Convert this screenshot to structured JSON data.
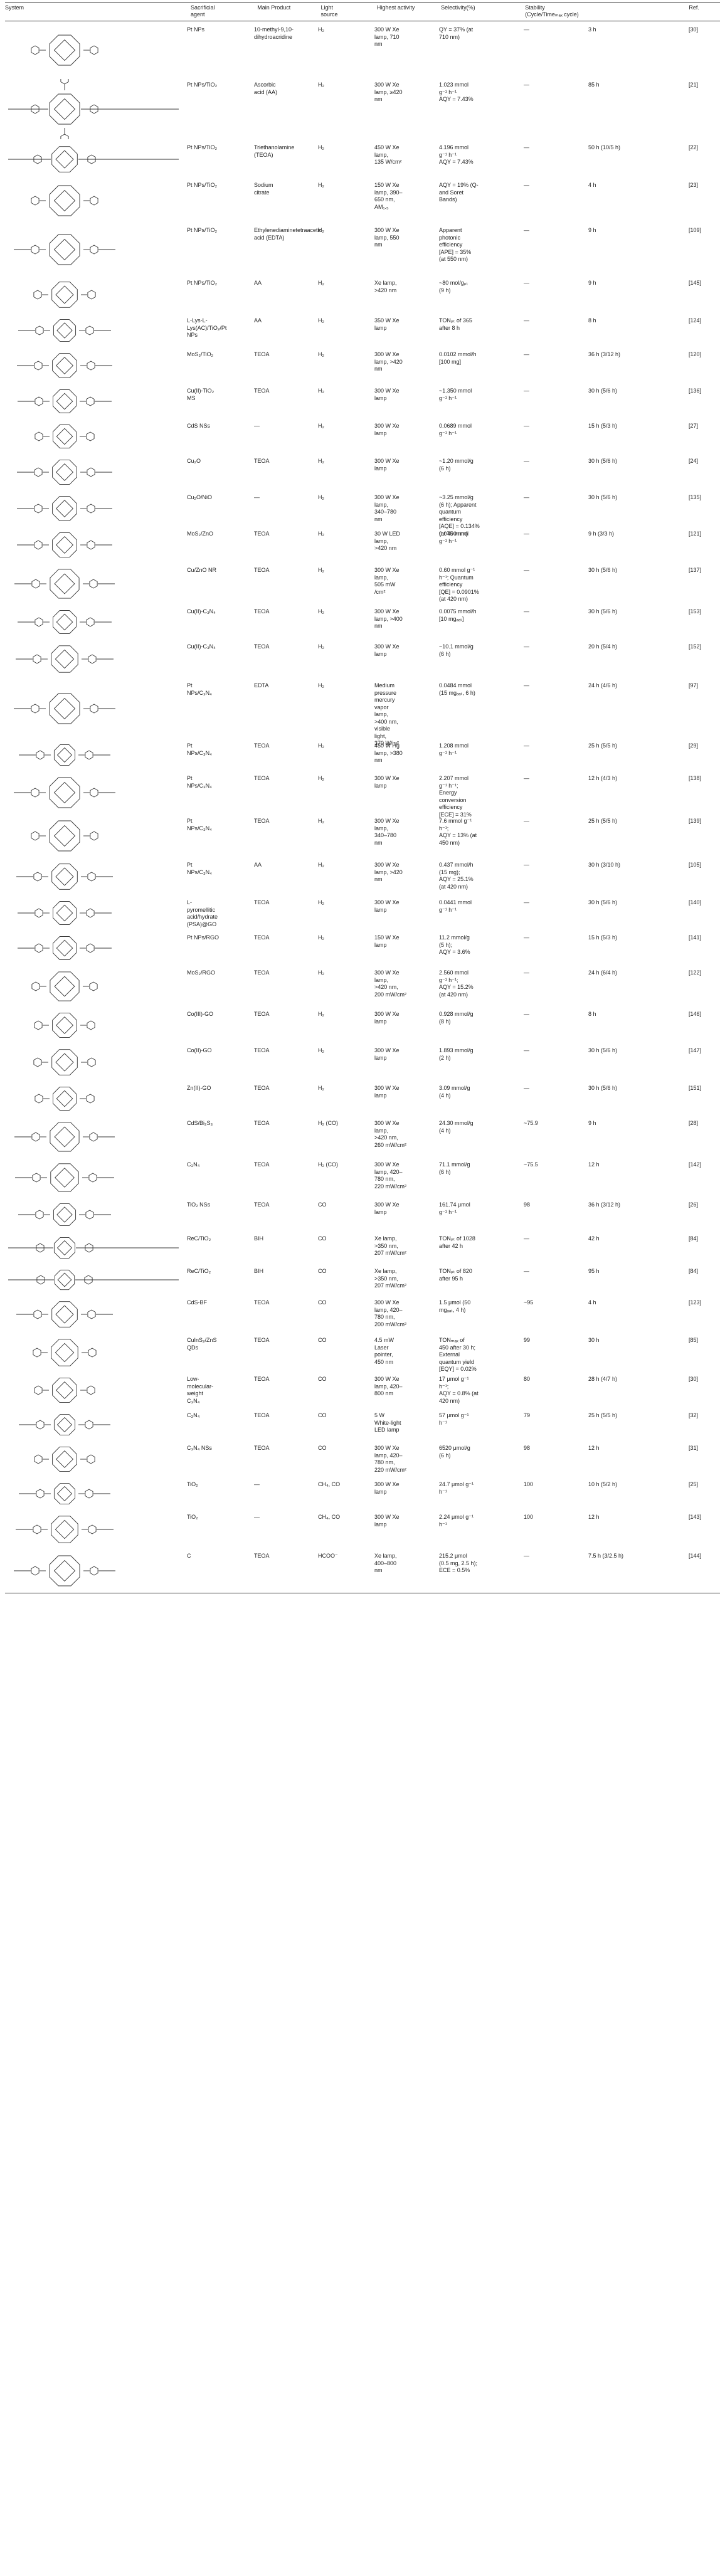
{
  "header": {
    "system": "System",
    "sacrificial": "Sacrificial\nagent",
    "product": "Main Product",
    "light": "Light\nsource",
    "activity": "Highest activity",
    "selectivity": "Selectivity(%)",
    "stability": "Stability\n(Cycle/Timeₘₐₓ cycle)",
    "ref": "Ref."
  },
  "rows": [
    {
      "h": 88,
      "mol": "porphyrin-pyridyl",
      "system": "Pt NPs",
      "agent": "10-methyl-9,10-dihydroacridine",
      "product": "H₂",
      "light": "300 W Xe\nlamp, 710\nnm",
      "activity": "QY = 37% (at\n710 nm)",
      "selectivity": "—",
      "stability": "3 h",
      "ref": "[30]"
    },
    {
      "h": 100,
      "mol": "porphyrin-dimer",
      "system": "Pt NPs/TiO₂",
      "agent": "Ascorbic\nacid (AA)",
      "product": "H₂",
      "light": "300 W Xe\nlamp, ≥420\nnm",
      "activity": "1.023 mmol\ng⁻¹ h⁻¹\nAQY = 7.43%",
      "selectivity": "—",
      "stability": "85 h",
      "ref": "[21]"
    },
    {
      "h": 60,
      "mol": "porphyrin-alkyne",
      "system": "Pt NPs/TiO₂",
      "agent": "Triethanolamine\n(TEOA)",
      "product": "H₂",
      "light": "450 W Xe\nlamp,\n135 W/cm²",
      "activity": "4.196 mmol\ng⁻¹ h⁻¹\nAQY = 7.43%",
      "selectivity": "—",
      "stability": "50 h (10/5 h)",
      "ref": "[22]"
    },
    {
      "h": 72,
      "mol": "porphyrin-ester",
      "system": "Pt NPs/TiO₂",
      "agent": "Sodium\ncitrate",
      "product": "H₂",
      "light": "150 W Xe\nlamp, 390–\n650 nm,\nAM₁.₅",
      "activity": "AQY = 19% (Q-\nand Soret\nBands)",
      "selectivity": "—",
      "stability": "4 h",
      "ref": "[23]"
    },
    {
      "h": 84,
      "mol": "porphyrin-amine",
      "system": "Pt NPs/TiO₂",
      "agent": "Ethylenediaminetetraacetic\nacid (EDTA)",
      "product": "H₂",
      "light": "300 W Xe\nlamp, 550\nnm",
      "activity": "Apparent\nphotonic\nefficiency\n[APE] = 35%\n(at 550 nm)",
      "selectivity": "—",
      "stability": "9 h",
      "ref": "[109]"
    },
    {
      "h": 60,
      "mol": "porphyrin-triazole",
      "system": "Pt NPs/TiO₂",
      "agent": "AA",
      "product": "H₂",
      "light": "Xe lamp,\n>420 nm",
      "activity": "~80 mol/gₚₜ\n(9 h)",
      "selectivity": "—",
      "stability": "9 h",
      "ref": "[145]"
    },
    {
      "h": 54,
      "mol": "porphyrin-sulfonate",
      "system": "L-Lys-L-\nLys(AC)/TiO₂/Pt\nNPs",
      "agent": "AA",
      "product": "H₂",
      "light": "350 W Xe\nlamp",
      "activity": "TONₚₜ of 365\nafter 8 h",
      "selectivity": "—",
      "stability": "8 h",
      "ref": "[124]"
    },
    {
      "h": 58,
      "mol": "porphyrin-carboxy",
      "system": "MoS₂/TiO₂",
      "agent": "TEOA",
      "product": "H₂",
      "light": "300 W Xe\nlamp, >420\nnm",
      "activity": "0.0102 mmol/h\n[100 mg]",
      "selectivity": "—",
      "stability": "36 h (3/12 h)",
      "ref": "[120]"
    },
    {
      "h": 56,
      "mol": "porphyrin-carboxy",
      "system": "Cu(II)-TiO₂\nMS",
      "agent": "TEOA",
      "product": "H₂",
      "light": "300 W Xe\nlamp",
      "activity": "~1.350 mmol\ng⁻¹ h⁻¹",
      "selectivity": "—",
      "stability": "30 h (5/6 h)",
      "ref": "[136]"
    },
    {
      "h": 56,
      "mol": "porphyrin-amide",
      "system": "CdS NSs",
      "agent": "—",
      "product": "H₂",
      "light": "300 W Xe\nlamp",
      "activity": "0.0689 mmol\ng⁻¹ h⁻¹",
      "selectivity": "—",
      "stability": "15 h (5/3 h)",
      "ref": "[27]"
    },
    {
      "h": 58,
      "mol": "porphyrin-carboxy",
      "system": "Cu₂O",
      "agent": "TEOA",
      "product": "H₂",
      "light": "300 W Xe\nlamp",
      "activity": "~1.20 mmol/g\n(6 h)",
      "selectivity": "—",
      "stability": "30 h (5/6 h)",
      "ref": "[24]"
    },
    {
      "h": 58,
      "mol": "porphyrin-carboxy",
      "system": "Cu₂O/NiO",
      "agent": "—",
      "product": "H₂",
      "light": "300 W Xe\nlamp,\n340–780\nnm",
      "activity": "~3.25 mmol/g\n(6 h); Apparent\nquantum\nefficiency\n[AQE] = 0.134%\n(at 400 nm)",
      "selectivity": "—",
      "stability": "30 h (5/6 h)",
      "ref": "[135]"
    },
    {
      "h": 58,
      "mol": "porphyrin-carboxy",
      "system": "MoS₂/ZnO",
      "agent": "TEOA",
      "product": "H₂",
      "light": "30 W LED\nlamp,\n>420 nm",
      "activity": "0.075 mmol\ng⁻¹ h⁻¹",
      "selectivity": "—",
      "stability": "9 h (3/3 h)",
      "ref": "[121]"
    },
    {
      "h": 66,
      "mol": "porphyrin-sulfonate",
      "system": "Cu/ZnO NR",
      "agent": "TEOA",
      "product": "H₂",
      "light": "300 W Xe\nlamp,\n505 mW\n/cm²",
      "activity": "0.60 mmol g⁻¹\nh⁻¹; Quantum\nefficiency\n[QE] = 0.0901%\n(at 420 nm)",
      "selectivity": "—",
      "stability": "30 h (5/6 h)",
      "ref": "[137]"
    },
    {
      "h": 56,
      "mol": "porphyrin-hydroxy",
      "system": "Cu(II)-C₃N₄",
      "agent": "TEOA",
      "product": "H₂",
      "light": "300 W Xe\nlamp, >400\nnm",
      "activity": "0.0075 mmol/h\n[10 mgₐₐₜ]",
      "selectivity": "—",
      "stability": "30 h (5/6 h)",
      "ref": "[153]"
    },
    {
      "h": 62,
      "mol": "porphyrin-carboxy",
      "system": "Cu(II)-C₃N₄",
      "agent": "TEOA",
      "product": "H₂",
      "light": "300 W Xe\nlamp",
      "activity": "~10.1 mmol/g\n(6 h)",
      "selectivity": "—",
      "stability": "20 h (5/4 h)",
      "ref": "[152]"
    },
    {
      "h": 96,
      "mol": "porphyrin-carboxy",
      "system": "Pt\nNPs/C₃N₄",
      "agent": "EDTA",
      "product": "H₂",
      "light": "Medium\npressure\nmercury\nvapor\nlamp,\n>400 nm,\nvisible\nlight,\n370 W/m²",
      "activity": "0.0484 mmol\n(15 mgₐₐₜ, 6 h)",
      "selectivity": "—",
      "stability": "24 h (4/6 h)",
      "ref": "[97]"
    },
    {
      "h": 52,
      "mol": "porphyrin-carboxy",
      "system": "Pt\nNPs/C₃N₄",
      "agent": "TEOA",
      "product": "H₂",
      "light": "450 W Hg\nlamp, >380\nnm",
      "activity": "1.208 mmol\ng⁻¹ h⁻¹",
      "selectivity": "—",
      "stability": "25 h (5/5 h)",
      "ref": "[29]"
    },
    {
      "h": 68,
      "mol": "porphyrin-bromo",
      "system": "Pt\nNPs/C₃N₄",
      "agent": "TEOA",
      "product": "H₂",
      "light": "300 W Xe\nlamp",
      "activity": "2.207 mmol\ng⁻¹ h⁻¹;\nEnergy\nconversion\nefficiency\n[ECE] = 31%",
      "selectivity": "—",
      "stability": "12 h (4/3 h)",
      "ref": "[138]"
    },
    {
      "h": 70,
      "mol": "porphyrin-amide",
      "system": "Pt\nNPs/C₃N₄",
      "agent": "TEOA",
      "product": "H₂",
      "light": "300 W Xe\nlamp,\n340–780\nnm",
      "activity": "7.6 mmol g⁻¹\nh⁻¹;\nAQY = 13% (at\n450 nm)",
      "selectivity": "—",
      "stability": "25 h (5/5 h)",
      "ref": "[139]"
    },
    {
      "h": 60,
      "mol": "porphyrin-carboxy",
      "system": "Pt\nNPs/C₃N₄",
      "agent": "AA",
      "product": "H₂",
      "light": "300 W Xe\nlamp, >420\nnm",
      "activity": "0.437 mmol/h\n(15 mg);\nAQY = 25.1%\n(at 420 nm)",
      "selectivity": "—",
      "stability": "30 h (3/10 h)",
      "ref": "[105]"
    },
    {
      "h": 56,
      "mol": "porphyrin-hydroxy",
      "system": "L-\npyromellitic\nacid/hydrate\n(PSA)@GO",
      "agent": "TEOA",
      "product": "H₂",
      "light": "300 W Xe\nlamp",
      "activity": "0.0441 mmol\ng⁻¹ h⁻¹",
      "selectivity": "—",
      "stability": "30 h (5/6 h)",
      "ref": "[140]"
    },
    {
      "h": 56,
      "mol": "porphyrin-hydroxy",
      "system": "Pt NPs/RGO",
      "agent": "TEOA",
      "product": "H₂",
      "light": "150 W Xe\nlamp",
      "activity": "11.2 mmol/g\n(5 h);\nAQY = 3.6%",
      "selectivity": "—",
      "stability": "15 h (5/3 h)",
      "ref": "[141]"
    },
    {
      "h": 66,
      "mol": "porphyrin-pyridyl",
      "system": "MoS₂/RGO",
      "agent": "TEOA",
      "product": "H₂",
      "light": "300 W Xe\nlamp,\n>420 nm,\n200 mW/cm²",
      "activity": "2.560 mmol\ng⁻¹ h⁻¹;\nAQY = 15.2%\n(at 420 nm)",
      "selectivity": "—",
      "stability": "24 h (6/4 h)",
      "ref": "[122]"
    },
    {
      "h": 58,
      "mol": "porphyrin-plain",
      "system": "Co(III)-GO",
      "agent": "TEOA",
      "product": "H₂",
      "light": "300 W Xe\nlamp",
      "activity": "0.928 mmol/g\n(8 h)",
      "selectivity": "—",
      "stability": "8 h",
      "ref": "[146]"
    },
    {
      "h": 60,
      "mol": "porphyrin-plain",
      "system": "Co(II)-GO",
      "agent": "TEOA",
      "product": "H₂",
      "light": "300 W Xe\nlamp",
      "activity": "1.893 mmol/g\n(2 h)",
      "selectivity": "—",
      "stability": "30 h (5/6 h)",
      "ref": "[147]"
    },
    {
      "h": 56,
      "mol": "porphyrin-plain",
      "system": "Zn(II)-GO",
      "agent": "TEOA",
      "product": "H₂",
      "light": "300 W Xe\nlamp",
      "activity": "3.09 mmol/g\n(4 h)",
      "selectivity": "—",
      "stability": "30 h (5/6 h)",
      "ref": "[151]"
    },
    {
      "h": 66,
      "mol": "porphyrin-carboxy",
      "system": "CdS/Bi₂S₃",
      "agent": "TEOA",
      "product": "H₂ (CO)",
      "light": "300 W Xe\nlamp,\n>420 nm,\n260 mW/cm²",
      "activity": "24.30 mmol/g\n(4 h)",
      "selectivity": "~75.9",
      "stability": "9 h",
      "ref": "[28]"
    },
    {
      "h": 64,
      "mol": "porphyrin-carboxy",
      "system": "C₃N₄",
      "agent": "TEOA",
      "product": "H₂ (CO)",
      "light": "300 W Xe\nlamp, 420–\n780 nm,\n220 mW/cm²",
      "activity": "71.1 mmol/g\n(6 h)",
      "selectivity": "~75.5",
      "stability": "12 h",
      "ref": "[142]"
    },
    {
      "h": 54,
      "mol": "porphyrin-carboxy",
      "system": "TiO₂ NSs",
      "agent": "TEOA",
      "product": "CO",
      "light": "300 W Xe\nlamp",
      "activity": "161.74 μmol\ng⁻¹ h⁻¹",
      "selectivity": "98",
      "stability": "36 h (3/12 h)",
      "ref": "[26]"
    },
    {
      "h": 52,
      "mol": "porphyrin-rhenium",
      "system": "ReC/TiO₂",
      "agent": "BIH",
      "product": "CO",
      "light": "Xe lamp,\n>350 nm,\n207 mW/cm²",
      "activity": "TONₚₜ of 1028\nafter 42 h",
      "selectivity": "—",
      "stability": "42 h",
      "ref": "[84]"
    },
    {
      "h": 50,
      "mol": "porphyrin-rhenium",
      "system": "ReC/TiO₂",
      "agent": "BIH",
      "product": "CO",
      "light": "Xe lamp,\n>350 nm,\n207 mW/cm²",
      "activity": "TONₚₜ of 820\nafter 95 h",
      "selectivity": "—",
      "stability": "95 h",
      "ref": "[84]"
    },
    {
      "h": 60,
      "mol": "porphyrin-carboxy",
      "system": "CdS-BF",
      "agent": "TEOA",
      "product": "CO",
      "light": "300 W Xe\nlamp, 420–\n780 nm,\n200 mW/cm²",
      "activity": "1.5 μmol (50\nmgₐₐₜ, 4 h)",
      "selectivity": "~95",
      "stability": "4 h",
      "ref": "[123]"
    },
    {
      "h": 62,
      "mol": "porphyrin-nitrile",
      "system": "CuInS₂/ZnS\nQDs",
      "agent": "TEOA",
      "product": "CO",
      "light": "4.5 mW\nLaser\npointer,\n450 nm",
      "activity": "TONₘₐₓ of\n450 after 30 h;\nExternal\nquantum yield\n[EQY] = 0.02%",
      "selectivity": "99",
      "stability": "30 h",
      "ref": "[85]"
    },
    {
      "h": 58,
      "mol": "porphyrin-imide",
      "system": "Low-\nmolecular-\nweight\nC₃N₄",
      "agent": "TEOA",
      "product": "CO",
      "light": "300 W Xe\nlamp, 420–\n800 nm",
      "activity": "17 μmol g⁻¹\nh⁻¹;\nAQY = 0.8% (at\n420 nm)",
      "selectivity": "80",
      "stability": "28 h (4/7 h)",
      "ref": "[30]"
    },
    {
      "h": 52,
      "mol": "porphyrin-amine",
      "system": "C₃N₄",
      "agent": "TEOA",
      "product": "CO",
      "light": "5 W\nWhite-light\nLED lamp",
      "activity": "57 μmol g⁻¹\nh⁻¹",
      "selectivity": "79",
      "stability": "25 h (5/5 h)",
      "ref": "[32]"
    },
    {
      "h": 58,
      "mol": "porphyrin-pyridyl",
      "system": "C₃N₄ NSs",
      "agent": "TEOA",
      "product": "CO",
      "light": "300 W Xe\nlamp, 420–\n780 nm,\n220 mW/cm²",
      "activity": "6520 μmol/g\n(6 h)",
      "selectivity": "98",
      "stability": "12 h",
      "ref": "[31]"
    },
    {
      "h": 52,
      "mol": "porphyrin-carboxy",
      "system": "TiO₂",
      "agent": "—",
      "product": "CH₄, CO",
      "light": "300 W Xe\nlamp",
      "activity": "24.7 μmol g⁻¹\nh⁻¹",
      "selectivity": "100",
      "stability": "10 h (5/2 h)",
      "ref": "[25]"
    },
    {
      "h": 62,
      "mol": "porphyrin-carboxy",
      "system": "TiO₂",
      "agent": "—",
      "product": "CH₄, CO",
      "light": "300 W Xe\nlamp",
      "activity": "2.24 μmol g⁻¹\nh⁻¹",
      "selectivity": "100",
      "stability": "12 h",
      "ref": "[143]"
    },
    {
      "h": 70,
      "mol": "porphyrin-amine",
      "system": "C",
      "agent": "TEOA",
      "product": "HCOO⁻",
      "light": "Xe lamp,\n400–800\nnm",
      "activity": "215.2 μmol\n(0.5 mg, 2.5 h);\nECE = 0.5%",
      "selectivity": "—",
      "stability": "7.5 h (3/2.5 h)",
      "ref": "[144]"
    }
  ]
}
